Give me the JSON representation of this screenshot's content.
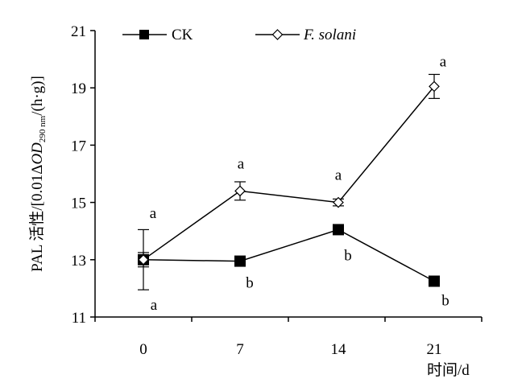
{
  "chart_data": {
    "type": "line",
    "x": [
      0,
      7,
      14,
      21
    ],
    "x_tick_labels": [
      "0",
      "7",
      "14",
      "21"
    ],
    "xlabel": "时间/d",
    "ylabel_prefix": "PAL 活性/[0.01Δ",
    "ylabel_od": "OD",
    "ylabel_sub": "290 nm",
    "ylabel_suffix": "/(h·g)]",
    "ylim": [
      11,
      21
    ],
    "y_ticks": [
      11,
      13,
      15,
      17,
      19,
      21
    ],
    "grid": false,
    "legend_position": "top",
    "series": [
      {
        "name": "CK",
        "marker": "filled-square",
        "color": "#000000",
        "values": [
          13.0,
          12.95,
          14.05,
          12.25
        ],
        "errors": [
          1.05,
          0.05,
          0.1,
          0.08
        ],
        "labels": [
          "a",
          "b",
          "b",
          "b"
        ]
      },
      {
        "name": "F. solani",
        "marker": "open-diamond",
        "color": "#000000",
        "values": [
          13.0,
          15.4,
          15.0,
          19.05
        ],
        "errors": [
          0.25,
          0.32,
          0.12,
          0.42
        ],
        "labels": [
          "a",
          "a",
          "a",
          "a"
        ]
      }
    ]
  }
}
